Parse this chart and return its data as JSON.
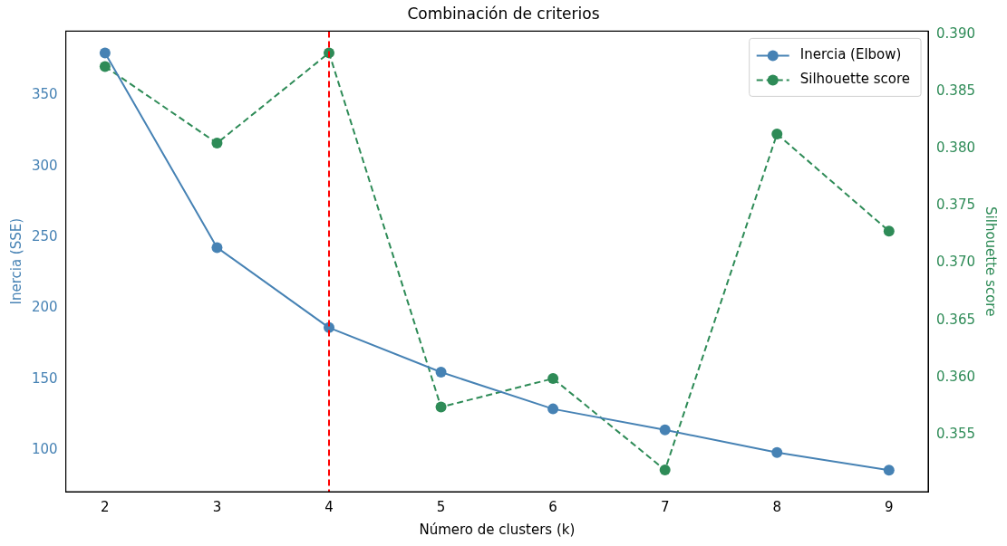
{
  "chart_data": {
    "type": "line",
    "title": "Combinación de criterios",
    "xlabel": "Número de clusters (k)",
    "ylabel": "Inercia (SSE)",
    "y2label": "Silhouette score",
    "x": [
      2,
      3,
      4,
      5,
      6,
      7,
      8,
      9
    ],
    "series": [
      {
        "name": "Inercia (Elbow)",
        "color": "#4682b4",
        "line_style": "solid",
        "values": [
          379.8,
          242.7,
          186.3,
          154.9,
          129.0,
          114.2,
          98.3,
          85.8
        ]
      },
      {
        "name": "Silhouette score",
        "color": "#2e8b57",
        "line_style": "dashed",
        "axis": "y2",
        "values": [
          0.3872,
          0.3805,
          0.3884,
          0.3574,
          0.3599,
          0.3519,
          0.3813,
          0.3728
        ]
      }
    ],
    "xlim": [
      1.65,
      9.35
    ],
    "xticks": [
      2,
      3,
      4,
      5,
      6,
      7,
      8,
      9
    ],
    "ylim": [
      70.7,
      395.2
    ],
    "yticks": [
      100,
      150,
      200,
      250,
      300,
      350
    ],
    "y2lim": [
      0.35,
      0.3903
    ],
    "y2ticks": [
      0.355,
      {
        "value": 0.36,
        "label": "0.360"
      },
      0.365,
      {
        "value": 0.37,
        "label": "0.370"
      },
      0.375,
      {
        "value": 0.38,
        "label": "0.380"
      },
      0.385,
      {
        "value": 0.39,
        "label": "0.390"
      }
    ],
    "ref_lines": [
      {
        "axis": "x",
        "value": 4,
        "color": "#ff0000",
        "line_style": "dashed"
      }
    ],
    "marker": "circle",
    "grid": false,
    "legend": "top right"
  }
}
